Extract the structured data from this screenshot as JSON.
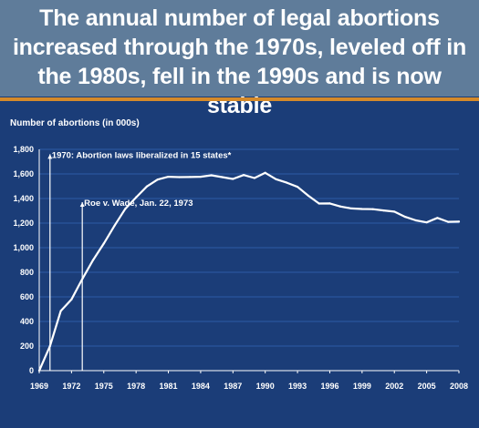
{
  "title": "The annual number of legal abortions increased through the 1970s, leveled off in the 1980s, fell in the 1990s and is now stable",
  "colors": {
    "background": "#1b3d78",
    "title_band": "#5f7c9a",
    "accent_rule": "#d58a2a",
    "line": "#ffffff",
    "grid": "#2d5aa6"
  },
  "chart_data": {
    "type": "line",
    "ylabel": "Number of abortions (in 000s)",
    "xlabel": "",
    "xlim": [
      1969,
      2008
    ],
    "ylim": [
      0,
      1800
    ],
    "x_ticks": [
      1969,
      1972,
      1975,
      1978,
      1981,
      1984,
      1987,
      1990,
      1993,
      1996,
      1999,
      2002,
      2005,
      2008
    ],
    "y_ticks": [
      0,
      200,
      400,
      600,
      800,
      1000,
      1200,
      1400,
      1600,
      1800
    ],
    "y_tick_labels": [
      "0",
      "200",
      "400",
      "600",
      "800",
      "1,000",
      "1,200",
      "1,400",
      "1,600",
      "1,800"
    ],
    "grid": "horizontal",
    "series": [
      {
        "x": [
          1969,
          1970,
          1971,
          1972,
          1973,
          1974,
          1975,
          1976,
          1977,
          1978,
          1979,
          1980,
          1981,
          1982,
          1983,
          1984,
          1985,
          1986,
          1987,
          1988,
          1989,
          1990,
          1991,
          1992,
          1993,
          1994,
          1995,
          1996,
          1997,
          1998,
          1999,
          2000,
          2001,
          2002,
          2003,
          2004,
          2005,
          2006,
          2007,
          2008
        ],
        "values": [
          0,
          200,
          485,
          580,
          745,
          899,
          1034,
          1180,
          1317,
          1410,
          1498,
          1554,
          1577,
          1574,
          1575,
          1577,
          1589,
          1574,
          1559,
          1591,
          1567,
          1609,
          1557,
          1529,
          1495,
          1423,
          1359,
          1360,
          1335,
          1319,
          1315,
          1313,
          1303,
          1293,
          1251,
          1222,
          1206,
          1242,
          1210,
          1212
        ]
      }
    ],
    "annotations": [
      {
        "label": "1970: Abortion laws liberalized in 15 states*",
        "x": 1970,
        "y": 1760
      },
      {
        "label": "Roe v. Wade, Jan. 22, 1973",
        "x": 1973,
        "y": 1370
      }
    ]
  }
}
